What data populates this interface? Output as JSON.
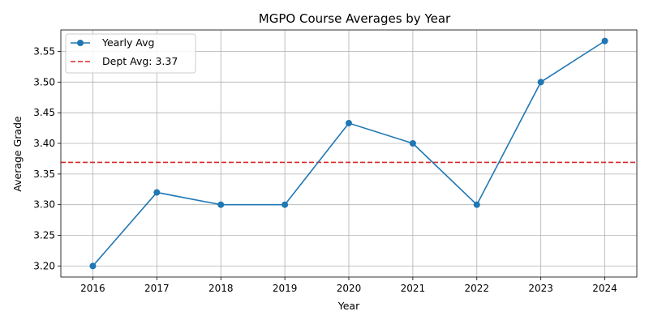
{
  "chart_data": {
    "type": "line",
    "title": "MGPO Course Averages by Year",
    "xlabel": "Year",
    "ylabel": "Average Grade",
    "categories": [
      "2016",
      "2017",
      "2018",
      "2019",
      "2020",
      "2021",
      "2022",
      "2023",
      "2024"
    ],
    "series": [
      {
        "name": "Yearly Avg",
        "values": [
          3.2,
          3.32,
          3.3,
          3.3,
          3.433,
          3.4,
          3.3,
          3.5,
          3.567
        ],
        "color": "#1f77b4"
      }
    ],
    "reference_line": {
      "label": "Dept Avg: 3.37",
      "value": 3.369,
      "color": "#d62728",
      "style": "dashed"
    },
    "ylim": [
      3.182,
      3.585
    ],
    "yticks": [
      "3.20",
      "3.25",
      "3.30",
      "3.35",
      "3.40",
      "3.45",
      "3.50",
      "3.55"
    ],
    "grid": true,
    "legend_position": "top-left"
  }
}
